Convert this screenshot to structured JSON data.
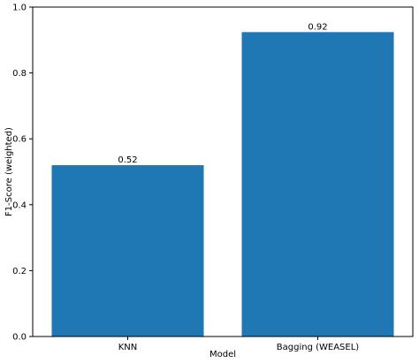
{
  "chart_data": {
    "type": "bar",
    "categories": [
      "KNN",
      "Bagging (WEASEL)"
    ],
    "values": [
      0.52,
      0.924
    ],
    "data_labels": [
      "0.52",
      "0.92"
    ],
    "xlabel": "Model",
    "ylabel": "F1-Score (weighted)",
    "ylim": [
      0,
      1.0
    ],
    "yticks": [
      "0.0",
      "0.2",
      "0.4",
      "0.6",
      "0.8",
      "1.0"
    ],
    "grid": false,
    "bar_color": "#1f77b4"
  }
}
